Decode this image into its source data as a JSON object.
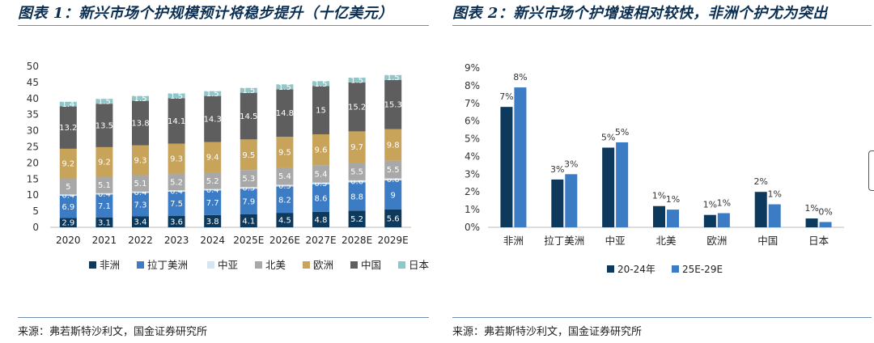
{
  "left": {
    "title": "图表 1：新兴市场个护规模预计将稳步提升（十亿美元）",
    "source": "来源：弗若斯特沙利文，国金证券研究所"
  },
  "right": {
    "title": "图表 2：新兴市场个护增速相对较快，非洲个护尤为突出",
    "source": "来源：弗若斯特沙利文，国金证券研究所"
  },
  "colors": {
    "africa": "#0d3a5c",
    "latam": "#3b7cc4",
    "mideast": "#d6e5f4",
    "namerica": "#a8a8a8",
    "europe": "#c8a45a",
    "china": "#5e5e5e",
    "japan": "#8fc7c9",
    "s1": "#0d3a5c",
    "s2": "#3b7cc4",
    "title": "#0b2f52",
    "rule": "#6f8fb0"
  },
  "chart_data": [
    {
      "type": "bar",
      "stacked": true,
      "title": "图表 1：新兴市场个护规模预计将稳步提升（十亿美元）",
      "categories": [
        "2020",
        "2021",
        "2022",
        "2023",
        "2024",
        "2025E",
        "2026E",
        "2027E",
        "2028E",
        "2029E"
      ],
      "ylim": [
        0,
        50
      ],
      "yticks": [
        "0",
        "5",
        "10",
        "15",
        "20",
        "25",
        "30",
        "35",
        "40",
        "45",
        "50"
      ],
      "legend_position": "bottom",
      "series": [
        {
          "name": "非洲",
          "color_key": "africa",
          "values": [
            2.9,
            3.1,
            3.4,
            3.6,
            3.8,
            4.1,
            4.5,
            4.8,
            5.2,
            5.6
          ],
          "labels": [
            "2.9",
            "3.1",
            "3.4",
            "3.6",
            "3.8",
            "4.1",
            "4.5",
            "4.8",
            "5.2",
            "5.6"
          ]
        },
        {
          "name": "拉丁美洲",
          "color_key": "latam",
          "values": [
            6.9,
            7.1,
            7.3,
            7.5,
            7.7,
            7.9,
            8.2,
            8.6,
            8.8,
            9
          ],
          "labels": [
            "6.9",
            "7.1",
            "7.3",
            "7.5",
            "7.7",
            "7.9",
            "8.2",
            "8.6",
            "8.8",
            "9"
          ]
        },
        {
          "name": "中亚",
          "color_key": "mideast",
          "values": [
            0.4,
            0.4,
            0.4,
            0.4,
            0.4,
            0.5,
            0.5,
            0.5,
            0.6,
            0.6
          ],
          "labels": [
            "0.4",
            "0.4",
            "0.4",
            "0.4",
            "0.4",
            "0.5",
            "0.5",
            "0.5",
            "0.6",
            "0.6"
          ]
        },
        {
          "name": "北美",
          "color_key": "namerica",
          "values": [
            5,
            5.1,
            5.1,
            5.2,
            5.2,
            5.3,
            5.4,
            5.4,
            5.5,
            5.5
          ],
          "labels": [
            "5",
            "5.1",
            "5.1",
            "5.2",
            "5.2",
            "5.3",
            "5.4",
            "5.4",
            "5.5",
            "5.5"
          ]
        },
        {
          "name": "欧洲",
          "color_key": "europe",
          "values": [
            9.2,
            9.2,
            9.3,
            9.3,
            9.4,
            9.5,
            9.5,
            9.6,
            9.7,
            9.8
          ],
          "labels": [
            "9.2",
            "9.2",
            "9.3",
            "9.3",
            "9.4",
            "9.5",
            "9.5",
            "9.6",
            "9.7",
            "9.8"
          ]
        },
        {
          "name": "中国",
          "color_key": "china",
          "values": [
            13.2,
            13.5,
            13.8,
            14.1,
            14.3,
            14.5,
            14.8,
            15,
            15.2,
            15.3
          ],
          "labels": [
            "13.2",
            "13.5",
            "13.8",
            "14.1",
            "14.3",
            "14.5",
            "14.8",
            "15",
            "15.2",
            "15.3"
          ]
        },
        {
          "name": "日本",
          "color_key": "japan",
          "values": [
            1.4,
            1.5,
            1.5,
            1.5,
            1.5,
            1.5,
            1.5,
            1.5,
            1.5,
            1.5
          ],
          "labels": [
            "1.4",
            "1.5",
            "1.5",
            "1.5",
            "1.5",
            "1.5",
            "1.5",
            "1.5",
            "1.5",
            "1.5"
          ]
        }
      ]
    },
    {
      "type": "bar",
      "title": "图表 2：新兴市场个护增速相对较快，非洲个护尤为突出",
      "categories": [
        "非洲",
        "拉丁美洲",
        "中亚",
        "北美",
        "欧洲",
        "中国",
        "日本"
      ],
      "ylim": [
        0,
        9
      ],
      "yticks": [
        "0%",
        "1%",
        "2%",
        "3%",
        "4%",
        "5%",
        "6%",
        "7%",
        "8%",
        "9%"
      ],
      "legend_position": "bottom",
      "series": [
        {
          "name": "20-24年",
          "color_key": "s1",
          "values": [
            6.8,
            2.7,
            4.5,
            1.2,
            0.7,
            2.0,
            0.5
          ],
          "labels": [
            "7%",
            "3%",
            "5%",
            "1%",
            "1%",
            "2%",
            "1%"
          ]
        },
        {
          "name": "25E-29E",
          "color_key": "s2",
          "values": [
            7.9,
            3.0,
            4.8,
            1.0,
            0.8,
            1.3,
            0.3
          ],
          "labels": [
            "8%",
            "3%",
            "5%",
            "1%",
            "1%",
            "1%",
            "0%"
          ]
        }
      ]
    }
  ]
}
